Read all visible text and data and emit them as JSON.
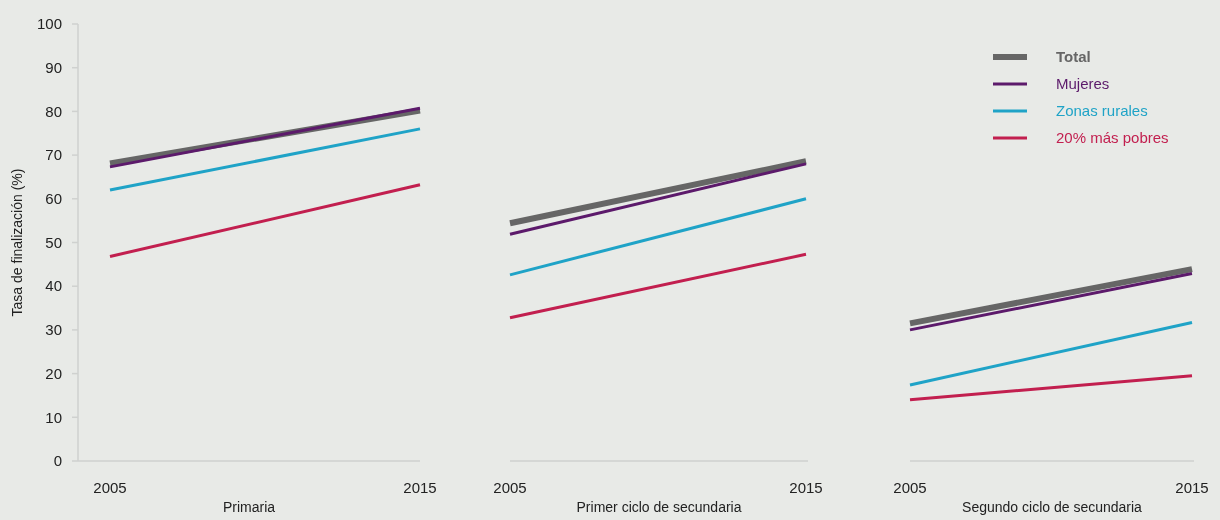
{
  "chart_data": [
    {
      "type": "line",
      "xlabel": "Primaria",
      "ylabel": "Tasa de finalización (%)",
      "categories": [
        "2005",
        "2015"
      ],
      "ylim": [
        0,
        100
      ],
      "yticks": [
        0,
        10,
        20,
        30,
        40,
        50,
        60,
        70,
        80,
        90,
        100
      ],
      "grid": false,
      "legend": false,
      "tick_labels": "xy",
      "series": [
        {
          "color": "#666666",
          "values": [
            68.1,
            80.2
          ]
        },
        {
          "color": "#5c1a6b",
          "values": [
            67.3,
            80.7
          ]
        },
        {
          "color": "#1fa3c7",
          "values": [
            62.0,
            76.0
          ]
        },
        {
          "color": "#c21f4f",
          "values": [
            46.8,
            63.2
          ]
        }
      ]
    },
    {
      "type": "line",
      "xlabel": "Primer ciclo de secundaria",
      "categories": [
        "2005",
        "2015"
      ],
      "ylim": [
        0,
        100
      ],
      "grid": false,
      "legend": false,
      "tick_labels": "x",
      "series": [
        {
          "color": "#666666",
          "values": [
            54.4,
            68.6
          ]
        },
        {
          "color": "#5c1a6b",
          "values": [
            51.9,
            68.0
          ]
        },
        {
          "color": "#1fa3c7",
          "values": [
            42.6,
            60.0
          ]
        },
        {
          "color": "#c21f4f",
          "values": [
            32.8,
            47.3
          ]
        }
      ]
    },
    {
      "type": "line",
      "xlabel": "Segundo ciclo de secundaria",
      "categories": [
        "2005",
        "2015"
      ],
      "ylim": [
        0,
        100
      ],
      "grid": false,
      "legend": "top",
      "tick_labels": "x",
      "series": [
        {
          "name": "Total",
          "color": "#666666",
          "values": [
            31.5,
            43.9
          ]
        },
        {
          "name": "Mujeres",
          "color": "#5c1a6b",
          "values": [
            30.0,
            42.9
          ]
        },
        {
          "name": "Zonas rurales",
          "color": "#1fa3c7",
          "values": [
            17.4,
            31.7
          ]
        },
        {
          "name": "20% más pobres",
          "color": "#c21f4f",
          "values": [
            14.0,
            19.5
          ]
        }
      ]
    }
  ]
}
